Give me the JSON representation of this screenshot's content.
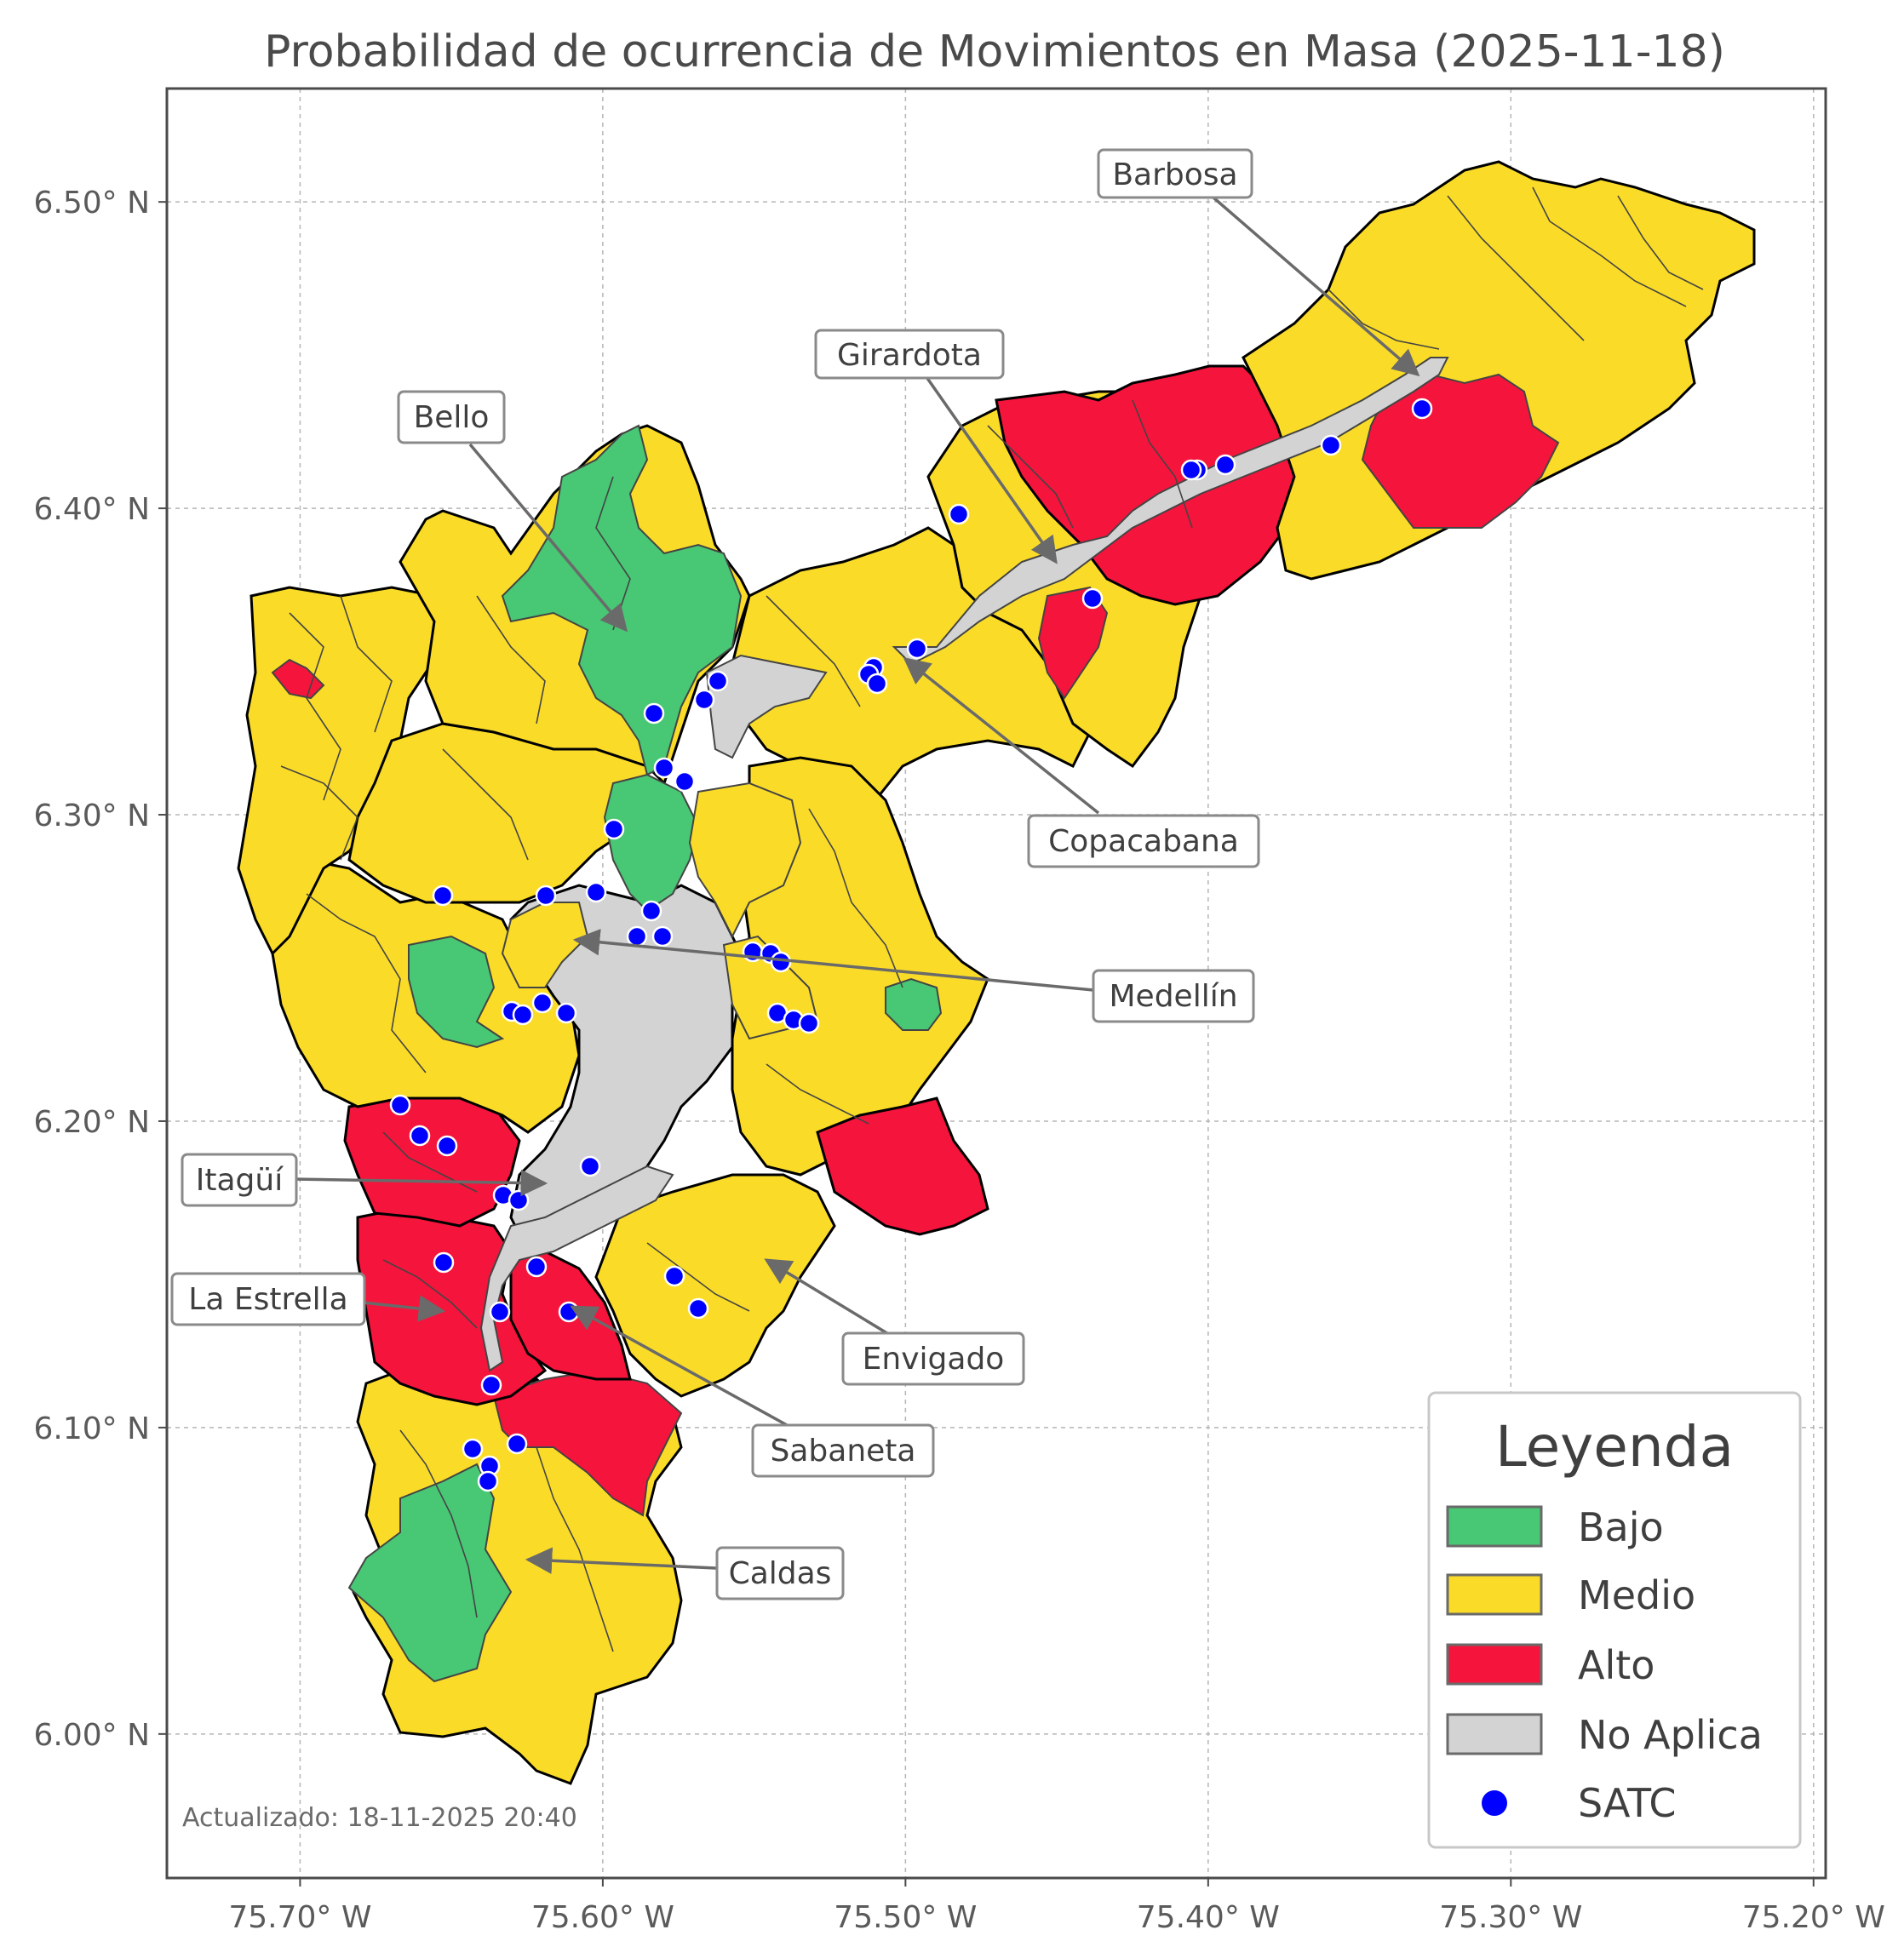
{
  "title": "Probabilidad de ocurrencia de Movimientos en Masa (2025-11-18)",
  "axes": {
    "x_ticks": [
      "75.70° W",
      "75.60° W",
      "75.50° W",
      "75.40° W",
      "75.30° W",
      "75.20° W"
    ],
    "y_ticks": [
      "6.50° N",
      "6.40° N",
      "6.30° N",
      "6.20° N",
      "6.10° N",
      "6.00° N"
    ],
    "x_range": [
      -75.744,
      -75.196
    ],
    "y_range": [
      5.953,
      6.537
    ],
    "grid": "on"
  },
  "colors": {
    "bajo": "#48c774",
    "medio": "#fadc28",
    "alto": "#f5143c",
    "no_aplica": "#d3d3d3",
    "satc": "#0000ff",
    "leader": "#6a6a6a"
  },
  "municipalities": [
    {
      "name": "Barbosa",
      "label": "Barbosa"
    },
    {
      "name": "Girardota",
      "label": "Girardota"
    },
    {
      "name": "Bello",
      "label": "Bello"
    },
    {
      "name": "Copacabana",
      "label": "Copacabana"
    },
    {
      "name": "Medellín",
      "label": "Medellín"
    },
    {
      "name": "Itagüí",
      "label": "Itagüí"
    },
    {
      "name": "La Estrella",
      "label": "La Estrella"
    },
    {
      "name": "Envigado",
      "label": "Envigado"
    },
    {
      "name": "Sabaneta",
      "label": "Sabaneta"
    },
    {
      "name": "Caldas",
      "label": "Caldas"
    }
  ],
  "legend": {
    "title": "Leyenda",
    "placement": "bottom-right",
    "items": [
      {
        "label": "Bajo",
        "kind": "patch",
        "color": "#48c774"
      },
      {
        "label": "Medio",
        "kind": "patch",
        "color": "#fadc28"
      },
      {
        "label": "Alto",
        "kind": "patch",
        "color": "#f5143c"
      },
      {
        "label": "No Aplica",
        "kind": "patch",
        "color": "#d3d3d3"
      },
      {
        "label": "SATC",
        "kind": "marker",
        "color": "#0000ff"
      }
    ]
  },
  "updated_text": "Actualizado: 18-11-2025 20:40"
}
